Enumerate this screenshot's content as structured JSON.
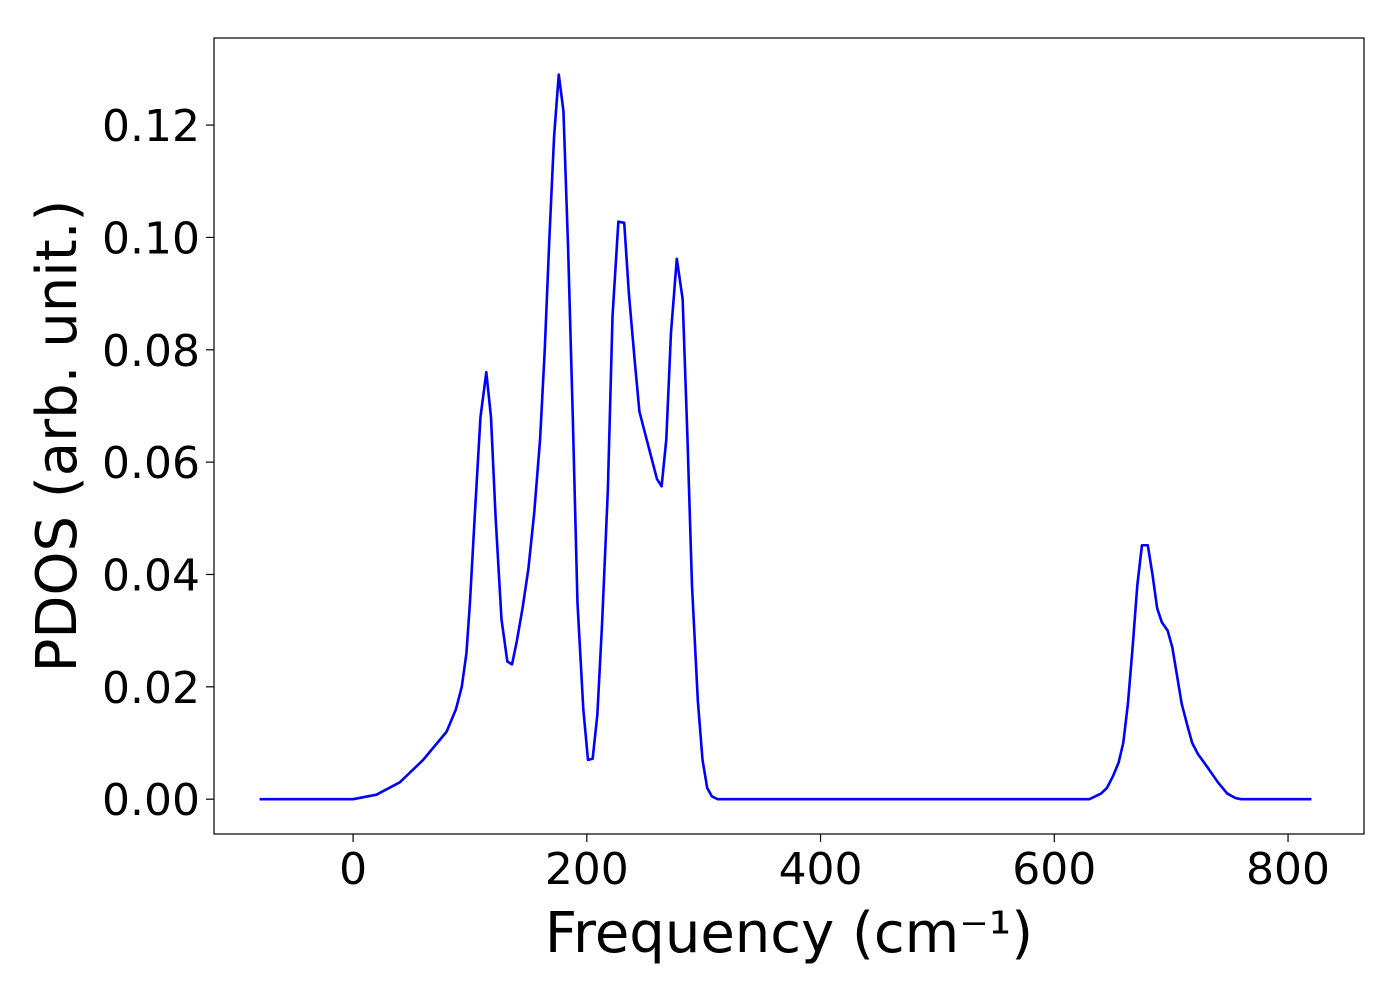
{
  "chart_data": {
    "type": "line",
    "xlabel": "Frequency (cm⁻¹)",
    "ylabel": "PDOS (arb. unit.)",
    "xlim": [
      -119,
      865
    ],
    "ylim": [
      -0.0062,
      0.1355
    ],
    "xticks": [
      0,
      200,
      400,
      600,
      800
    ],
    "yticks": [
      {
        "value": 0,
        "label": "0.00"
      },
      0.02,
      0.04,
      0.06,
      0.08,
      {
        "value": 0.1,
        "label": "0.10"
      },
      0.12
    ],
    "series": [
      {
        "color": "#0000ff",
        "x": [
          -80,
          0,
          20,
          40,
          60,
          80,
          88,
          93,
          97,
          100,
          104,
          109,
          114,
          118,
          122,
          127,
          132,
          136,
          140,
          145,
          150,
          155,
          160,
          164,
          168,
          172,
          176,
          180,
          184,
          188,
          192,
          197,
          201,
          205,
          209,
          213,
          218,
          222,
          227,
          232,
          236,
          241,
          245,
          250,
          255,
          260,
          264,
          268,
          272,
          277,
          282,
          286,
          290,
          295,
          299,
          303,
          307,
          312,
          400,
          600,
          630,
          640,
          645,
          650,
          655,
          659,
          663,
          667,
          671,
          675,
          680,
          684,
          688,
          692,
          697,
          701,
          705,
          709,
          714,
          718,
          723,
          730,
          740,
          748,
          755,
          760,
          820
        ],
        "values": [
          0,
          0,
          0.0008,
          0.003,
          0.007,
          0.012,
          0.016,
          0.02,
          0.026,
          0.035,
          0.05,
          0.068,
          0.076,
          0.068,
          0.05,
          0.032,
          0.0245,
          0.024,
          0.028,
          0.034,
          0.041,
          0.051,
          0.064,
          0.08,
          0.1,
          0.118,
          0.129,
          0.1225,
          0.098,
          0.068,
          0.035,
          0.016,
          0.007,
          0.0072,
          0.015,
          0.031,
          0.055,
          0.086,
          0.1028,
          0.1026,
          0.09,
          0.078,
          0.069,
          0.065,
          0.061,
          0.057,
          0.0557,
          0.064,
          0.083,
          0.0962,
          0.089,
          0.065,
          0.038,
          0.0175,
          0.007,
          0.002,
          0.0005,
          0,
          0,
          0,
          0,
          0.001,
          0.002,
          0.004,
          0.0065,
          0.01,
          0.017,
          0.027,
          0.038,
          0.0452,
          0.0452,
          0.04,
          0.034,
          0.0315,
          0.03,
          0.027,
          0.022,
          0.017,
          0.013,
          0.01,
          0.008,
          0.006,
          0.003,
          0.001,
          0.0002,
          0,
          0
        ]
      }
    ]
  }
}
